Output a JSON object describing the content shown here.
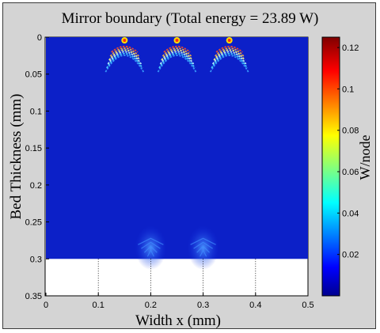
{
  "chart_data": {
    "type": "heatmap",
    "title": "Mirror boundary (Total energy = 23.89 W)",
    "xlabel": "Width x (mm)",
    "ylabel": "Bed Thickness (mm)",
    "xlim": [
      0,
      0.5
    ],
    "ylim": [
      0,
      0.35
    ],
    "y_reversed": true,
    "x_ticks": [
      "0",
      "0.1",
      "0.2",
      "0.3",
      "0.4",
      "0.5"
    ],
    "y_ticks": [
      "0",
      "0.05",
      "0.1",
      "0.15",
      "0.2",
      "0.25",
      "0.3",
      "0.35"
    ],
    "data_extent": {
      "x": [
        0,
        0.5
      ],
      "y": [
        0,
        0.3
      ]
    },
    "colorbar": {
      "label": "W/node",
      "range": [
        0,
        0.125
      ],
      "ticks": [
        "0.02",
        "0.04",
        "0.06",
        "0.08",
        "0.1",
        "0.12"
      ],
      "colormap": "jet"
    },
    "hotspots": [
      {
        "x": 0.15,
        "y": 0.0
      },
      {
        "x": 0.25,
        "y": 0.0
      },
      {
        "x": 0.35,
        "y": 0.0
      }
    ],
    "peak_value": 0.12,
    "grid": "dotted vertical lines in empty region"
  }
}
